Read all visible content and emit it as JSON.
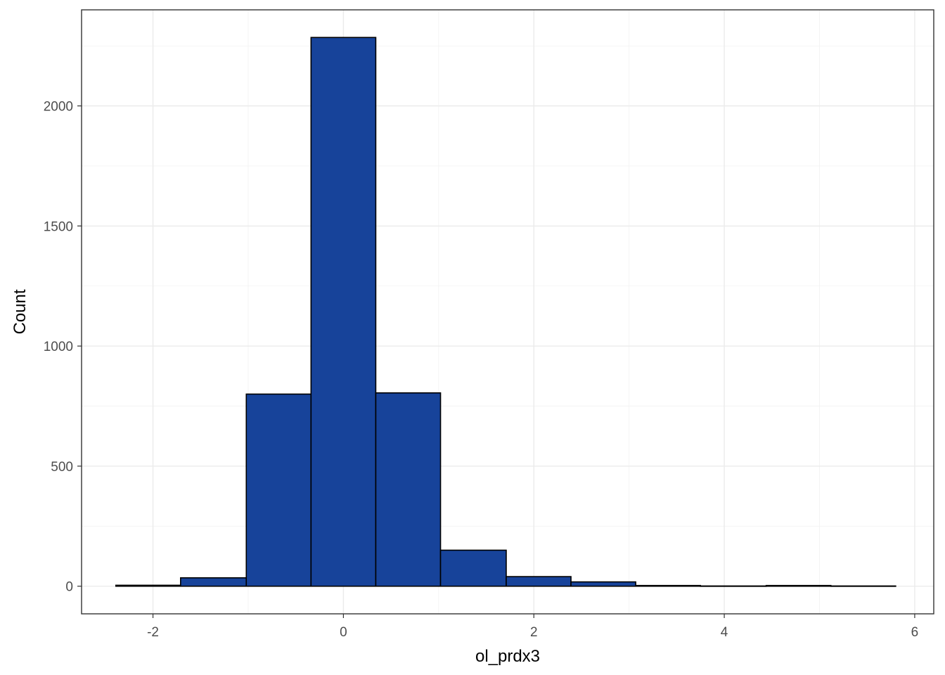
{
  "chart_data": {
    "type": "bar",
    "title": "",
    "xlabel": "ol_prdx3",
    "ylabel": "Count",
    "bar_color": "#17439a",
    "bar_outline": "#000000",
    "grid": true,
    "xlim": [
      -2.75,
      6.2
    ],
    "ylim": [
      -115,
      2400
    ],
    "x_ticks": [
      -2,
      0,
      2,
      4,
      6
    ],
    "x_tick_labels": [
      "-2",
      "0",
      "2",
      "4",
      "6"
    ],
    "y_ticks": [
      0,
      500,
      1000,
      1500,
      2000
    ],
    "y_tick_labels": [
      "0",
      "500",
      "1000",
      "1500",
      "2000"
    ],
    "bins": [
      {
        "x0": -2.39,
        "x1": -1.71,
        "count": 4
      },
      {
        "x0": -1.71,
        "x1": -1.02,
        "count": 35
      },
      {
        "x0": -1.02,
        "x1": -0.34,
        "count": 800
      },
      {
        "x0": -0.34,
        "x1": 0.34,
        "count": 2285
      },
      {
        "x0": 0.34,
        "x1": 1.02,
        "count": 805
      },
      {
        "x0": 1.02,
        "x1": 1.71,
        "count": 150
      },
      {
        "x0": 1.71,
        "x1": 2.39,
        "count": 40
      },
      {
        "x0": 2.39,
        "x1": 3.07,
        "count": 18
      },
      {
        "x0": 3.07,
        "x1": 3.75,
        "count": 3
      },
      {
        "x0": 3.75,
        "x1": 4.44,
        "count": 1
      },
      {
        "x0": 4.44,
        "x1": 5.12,
        "count": 3
      },
      {
        "x0": 5.12,
        "x1": 5.8,
        "count": 1
      }
    ]
  }
}
